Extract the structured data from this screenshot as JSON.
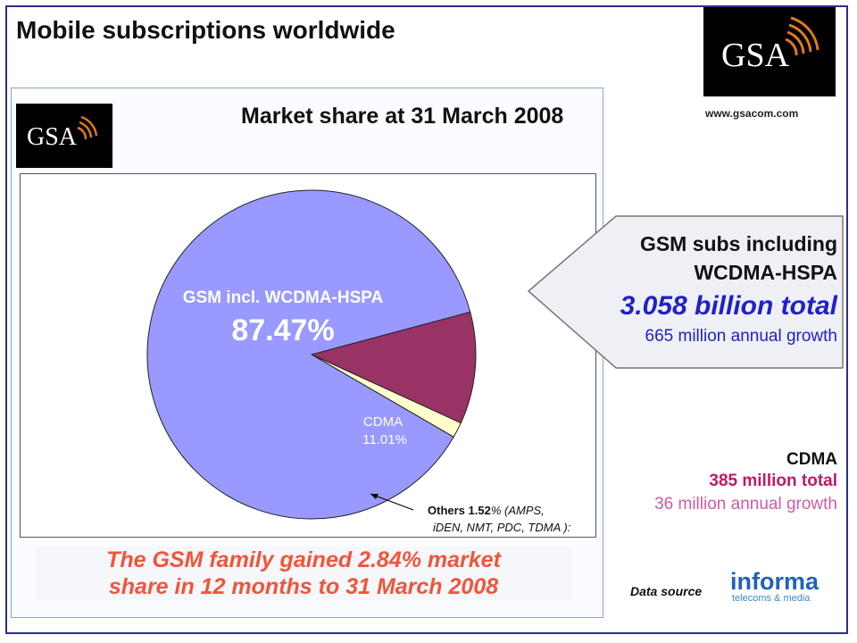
{
  "title": "Mobile subscriptions worldwide",
  "logo_text": "GSA",
  "website": "www.gsacom.com",
  "chart_data": {
    "type": "pie",
    "title": "Market share at 31 March 2008",
    "slices": [
      {
        "name": "GSM incl. WCDMA-HSPA",
        "value": 87.47,
        "value_label": "87.47%",
        "color": "#9999ff"
      },
      {
        "name": "CDMA",
        "value": 11.01,
        "value_label": "11.01%",
        "color": "#993366"
      },
      {
        "name": "Others 1.52%",
        "value": 1.52,
        "value_label": "(AMPS, iDEN, NMT, PDC, TDMA ):",
        "color": "#ffffcc"
      }
    ]
  },
  "others_label": {
    "line1_bold": "Others 1.52",
    "line1_rest": "% (AMPS,",
    "line2": "iDEN, NMT, PDC, TDMA ):"
  },
  "footer_note": {
    "line1": "The GSM family gained 2.84% market",
    "line2": "share in 12 months to 31 March 2008"
  },
  "gsm_callout": {
    "line1": "GSM subs including",
    "line2": "WCDMA-HSPA",
    "total": "3.058 billion total",
    "growth": "665 million annual growth"
  },
  "cdma_callout": {
    "title": "CDMA",
    "total": "385 million total",
    "growth": "36 million annual growth"
  },
  "data_source_label": "Data source",
  "informa_logo": {
    "name": "informa",
    "tagline": "telecoms & media"
  },
  "colors": {
    "accent_blue": "#2020c8",
    "cdma_magenta": "#c0186a",
    "footer_red": "#f0553b"
  }
}
